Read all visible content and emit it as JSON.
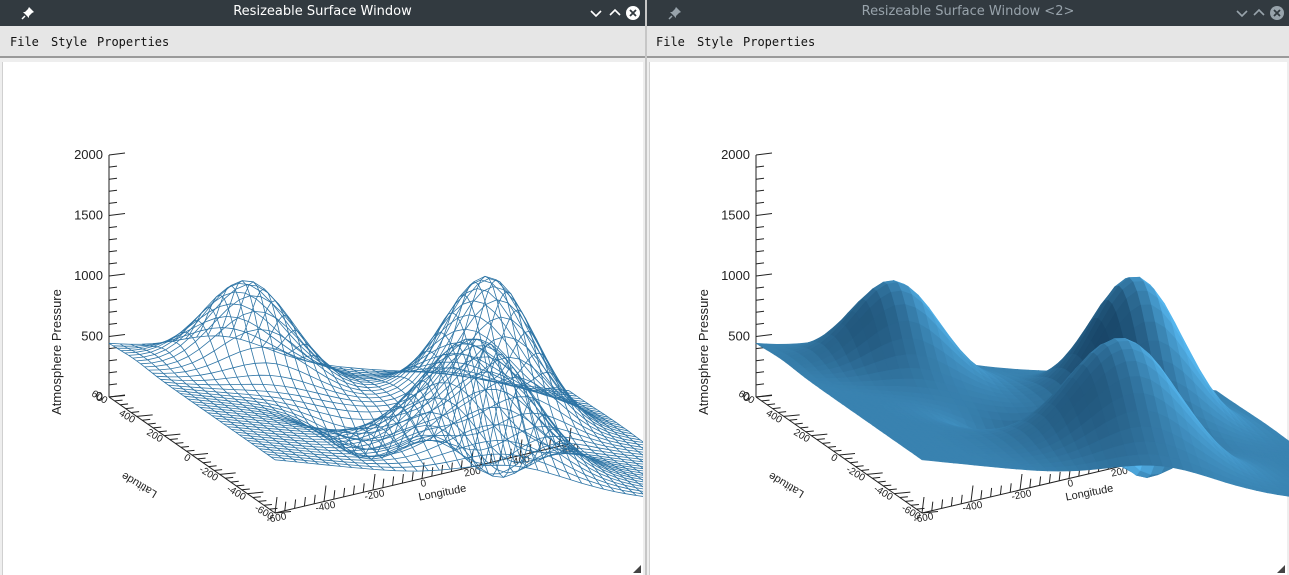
{
  "windows": [
    {
      "title": "Resizeable Surface Window",
      "menu": [
        "File",
        "Style",
        "Properties"
      ],
      "style": "mesh"
    },
    {
      "title": "Resizeable Surface Window <2>",
      "menu": [
        "File",
        "Style",
        "Properties"
      ],
      "style": "shaded"
    }
  ],
  "colors": {
    "mesh": "#2d74a5",
    "surface_light": "#55b6ee",
    "surface_dark": "#0c2f4d",
    "underside": "#1b1b1b",
    "titlebar": "#323a40"
  },
  "chart_data": {
    "type": "surface",
    "zlabel": "Atmosphere Pressure",
    "xlabel": "Longitude",
    "ylabel": "Latitude",
    "zticks": [
      "0",
      "500",
      "1000",
      "1500",
      "2000"
    ],
    "xticks": [
      "-600",
      "-400",
      "-200",
      "0",
      "200",
      "400",
      "600"
    ],
    "yticks": [
      "-600",
      "-400",
      "-200",
      "0",
      "200",
      "400",
      "600"
    ],
    "zlim": [
      0,
      2000
    ],
    "xlim": [
      -600,
      600
    ],
    "ylim": [
      -600,
      600
    ]
  }
}
